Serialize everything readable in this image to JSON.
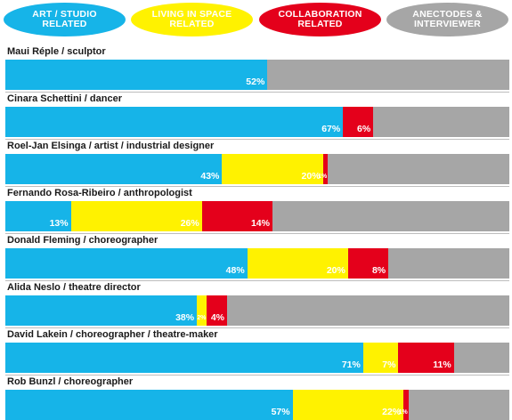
{
  "colors": {
    "art": "#16b4e8",
    "living": "#fff200",
    "collab": "#e4001b",
    "anecdotes": "#a6a6a6"
  },
  "legend": [
    {
      "key": "art",
      "label": "ART / STUDIO\nRELATED",
      "text_color": "#ffffff"
    },
    {
      "key": "living",
      "label": "LIVING IN SPACE\nRELATED",
      "text_color": "#ffffff"
    },
    {
      "key": "collab",
      "label": "COLLABORATION\nRELATED",
      "text_color": "#ffffff"
    },
    {
      "key": "anecdotes",
      "label": "ANECTODES &\nINTERVIEWER",
      "text_color": "#ffffff"
    }
  ],
  "chart_data": {
    "type": "bar",
    "orientation": "horizontal",
    "stacked": true,
    "series_order": [
      "art",
      "living",
      "collab",
      "anecdotes"
    ],
    "rows": [
      {
        "label": "Maui Réple / sculptor",
        "art": 52,
        "living": 0,
        "collab": 0,
        "art_label": "52%",
        "living_label": "",
        "collab_label": ""
      },
      {
        "label": "Cinara Schettini / dancer",
        "art": 67,
        "living": 0,
        "collab": 6,
        "art_label": "67%",
        "living_label": "",
        "collab_label": "6%"
      },
      {
        "label": "Roel-Jan Elsinga / artist / industrial designer",
        "art": 43,
        "living": 20,
        "collab": 1,
        "art_label": "43%",
        "living_label": "20%",
        "collab_label": "1%"
      },
      {
        "label": "Fernando Rosa-Ribeiro / anthropologist",
        "art": 13,
        "living": 26,
        "collab": 14,
        "art_label": "13%",
        "living_label": "26%",
        "collab_label": "14%"
      },
      {
        "label": "Donald Fleming / choreographer",
        "art": 48,
        "living": 20,
        "collab": 8,
        "art_label": "48%",
        "living_label": "20%",
        "collab_label": "8%"
      },
      {
        "label": "Alida Neslo / theatre director",
        "art": 38,
        "living": 2,
        "collab": 4,
        "art_label": "38%",
        "living_label": "2%",
        "collab_label": "4%"
      },
      {
        "label": "David Lakein / choreographer / theatre-maker",
        "art": 71,
        "living": 7,
        "collab": 11,
        "art_label": "71%",
        "living_label": "7%",
        "collab_label": "11%"
      },
      {
        "label": "Rob Bunzl / choreographer",
        "art": 57,
        "living": 22,
        "collab": 1,
        "art_label": "57%",
        "living_label": "22%",
        "collab_label": "1%"
      }
    ]
  }
}
